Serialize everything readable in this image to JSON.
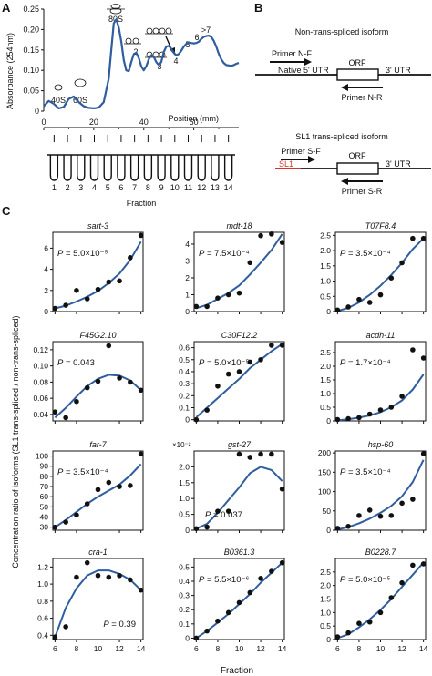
{
  "panel_labels": {
    "A": "A",
    "B": "B",
    "C": "C"
  },
  "colors": {
    "curve": "#2f5d9e",
    "dot": "#111111",
    "sl1": "#d8332a",
    "line": "#111111"
  },
  "panel_b": {
    "non_title": "Non-trans-spliced isoform",
    "sl1_title": "SL1 trans-spliced isoform",
    "primer_nf": "Primer N-F",
    "primer_nr": "Primer N-R",
    "native_utr": "Native 5' UTR",
    "orf": "ORF",
    "utr3": "3' UTR",
    "primer_sf": "Primer S-F",
    "primer_sr": "Primer S-R",
    "sl1": "SL1"
  },
  "panel_c": {
    "y_axis_label": "Concentration ratio of  isoforms (SL1 trans-spliced / non-trans-spliced)",
    "x_axis_label": "Fraction"
  },
  "chart_data": [
    {
      "id": "profile",
      "type": "line",
      "ylabel": "Absorbance (254nm)",
      "xlabel": "Position (mm)",
      "xlim": [
        0,
        78
      ],
      "ylim": [
        0,
        0.25
      ],
      "yticks": [
        "0",
        "0.05",
        "0.10",
        "0.15",
        "0.20",
        "0.25"
      ],
      "ytick_values": [
        0,
        0.05,
        0.1,
        0.15,
        0.2,
        0.25
      ],
      "xticks": [
        "0",
        "20",
        "40",
        "60"
      ],
      "xtick_values": [
        0,
        20,
        40,
        60
      ],
      "x": [
        0,
        2,
        4,
        6,
        8,
        10,
        12,
        14,
        16,
        18,
        20,
        22,
        24,
        26,
        27,
        28,
        29,
        30,
        31,
        32,
        33,
        34,
        35,
        36,
        37,
        38,
        39,
        40,
        41,
        42,
        43,
        44,
        45,
        46,
        47,
        48,
        49,
        50,
        51,
        52,
        53,
        54,
        55,
        56,
        57,
        58,
        59,
        60,
        61,
        62,
        63,
        64,
        65,
        66,
        67,
        68,
        69,
        70,
        71,
        72,
        73,
        74,
        75,
        76,
        77,
        78
      ],
      "y": [
        0.012,
        0.025,
        0.018,
        0.007,
        0.01,
        0.03,
        0.036,
        0.022,
        0.012,
        0.008,
        0.007,
        0.009,
        0.022,
        0.08,
        0.15,
        0.215,
        0.225,
        0.205,
        0.17,
        0.125,
        0.1,
        0.098,
        0.12,
        0.14,
        0.143,
        0.13,
        0.11,
        0.1,
        0.11,
        0.127,
        0.137,
        0.133,
        0.12,
        0.113,
        0.12,
        0.145,
        0.158,
        0.16,
        0.153,
        0.143,
        0.137,
        0.14,
        0.148,
        0.158,
        0.165,
        0.168,
        0.167,
        0.166,
        0.167,
        0.17,
        0.177,
        0.182,
        0.184,
        0.185,
        0.182,
        0.172,
        0.158,
        0.14,
        0.127,
        0.118,
        0.113,
        0.112,
        0.111,
        0.113,
        0.116,
        0.118
      ],
      "annotations": [
        "40S",
        "60S",
        "80S",
        "2",
        "3",
        "4",
        "5",
        "6",
        ">7"
      ],
      "fractions": [
        "1",
        "2",
        "3",
        "4",
        "5",
        "6",
        "7",
        "8",
        "9",
        "10",
        "11",
        "12",
        "13",
        "14"
      ],
      "fraction_label": "Fraction"
    },
    {
      "id": "sart-3",
      "type": "scatter",
      "title": "sart-3",
      "pvalue": "P = 5.0×10⁻⁵",
      "x": [
        6,
        7,
        8,
        9,
        10,
        11,
        12,
        13,
        14
      ],
      "y": [
        0.3,
        0.6,
        2.0,
        1.2,
        2.1,
        2.8,
        2.9,
        5.1,
        7.2
      ],
      "fit": [
        0.3,
        0.55,
        0.95,
        1.4,
        1.95,
        2.7,
        3.6,
        4.9,
        6.6
      ],
      "ylim": [
        0,
        7.5
      ],
      "yticks": [
        0,
        2,
        4,
        6
      ],
      "ytick_labels": [
        "0",
        "2",
        "4",
        "6"
      ],
      "xticks": [],
      "pos": "tl"
    },
    {
      "id": "mdt-18",
      "type": "scatter",
      "title": "mdt-18",
      "pvalue": "P = 7.5×10⁻⁴",
      "x": [
        6,
        7,
        8,
        9,
        10,
        11,
        12,
        13,
        14
      ],
      "y": [
        0.3,
        0.3,
        0.8,
        1.0,
        1.1,
        2.9,
        4.5,
        4.6,
        4.1
      ],
      "fit": [
        0.2,
        0.4,
        0.75,
        1.1,
        1.55,
        2.2,
        2.9,
        3.65,
        4.6
      ],
      "ylim": [
        0,
        4.7
      ],
      "yticks": [
        0,
        1,
        2,
        3,
        4
      ],
      "ytick_labels": [
        "0",
        "1",
        "2",
        "3",
        "4"
      ],
      "xticks": [],
      "pos": "tl"
    },
    {
      "id": "T07F8.4",
      "type": "scatter",
      "title": "T07F8.4",
      "pvalue": "P = 3.5×10⁻⁴",
      "x": [
        6,
        7,
        8,
        9,
        10,
        11,
        12,
        13,
        14
      ],
      "y": [
        0.05,
        0.15,
        0.4,
        0.3,
        0.55,
        1.1,
        1.6,
        2.4,
        2.4
      ],
      "fit": [
        0.02,
        0.12,
        0.3,
        0.55,
        0.85,
        1.2,
        1.6,
        2.05,
        2.4
      ],
      "ylim": [
        0,
        2.6
      ],
      "yticks": [
        0,
        0.5,
        1.0,
        1.5,
        2.0,
        2.5
      ],
      "ytick_labels": [
        "0",
        "0.5",
        "1.0",
        "1.5",
        "2.0",
        "2.5"
      ],
      "xticks": [],
      "pos": "tl"
    },
    {
      "id": "F45G2.10",
      "type": "scatter",
      "title": "F45G2.10",
      "pvalue": "P = 0.043",
      "x": [
        6,
        7,
        8,
        9,
        10,
        11,
        12,
        13,
        14
      ],
      "y": [
        0.043,
        0.036,
        0.056,
        0.073,
        0.081,
        0.125,
        0.085,
        0.08,
        0.07
      ],
      "fit": [
        0.036,
        0.048,
        0.062,
        0.075,
        0.084,
        0.089,
        0.088,
        0.082,
        0.07
      ],
      "ylim": [
        0.032,
        0.13
      ],
      "yticks": [
        0.04,
        0.06,
        0.08,
        0.1,
        0.12
      ],
      "ytick_labels": [
        "0.04",
        "0.06",
        "0.08",
        "0.10",
        "0.12"
      ],
      "xticks": [],
      "pos": "tl"
    },
    {
      "id": "C30F12.2",
      "type": "scatter",
      "title": "C30F12.2",
      "pvalue": "P = 5.0×10⁻⁵",
      "x": [
        6,
        7,
        8,
        9,
        10,
        11,
        12,
        13,
        14
      ],
      "y": [
        0.0,
        0.08,
        0.28,
        0.38,
        0.4,
        0.48,
        0.5,
        0.62,
        0.62
      ],
      "fit": [
        0.02,
        0.1,
        0.18,
        0.26,
        0.34,
        0.43,
        0.5,
        0.57,
        0.63
      ],
      "ylim": [
        -0.01,
        0.65
      ],
      "yticks": [
        0,
        0.1,
        0.2,
        0.3,
        0.4,
        0.5,
        0.6
      ],
      "ytick_labels": [
        "0",
        "0.1",
        "0.2",
        "0.3",
        "0.4",
        "0.5",
        "0.6"
      ],
      "xticks": [],
      "pos": "tl"
    },
    {
      "id": "acdh-11",
      "type": "scatter",
      "title": "acdh-11",
      "pvalue": "P = 1.7×10⁻⁴",
      "x": [
        6,
        7,
        8,
        9,
        10,
        11,
        12,
        13,
        14
      ],
      "y": [
        0.05,
        0.08,
        0.12,
        0.25,
        0.4,
        0.5,
        0.9,
        2.6,
        2.3
      ],
      "fit": [
        0.02,
        0.06,
        0.12,
        0.2,
        0.32,
        0.5,
        0.75,
        1.15,
        1.7
      ],
      "ylim": [
        0,
        2.9
      ],
      "yticks": [
        0,
        0.5,
        1.0,
        1.5,
        2.0,
        2.5
      ],
      "ytick_labels": [
        "0",
        "0.5",
        "1.0",
        "1.5",
        "2.0",
        "2.5"
      ],
      "xticks": [],
      "pos": "tl"
    },
    {
      "id": "far-7",
      "type": "scatter",
      "title": "far-7",
      "pvalue": "P = 3.5×10⁻⁴",
      "x": [
        6,
        7,
        8,
        9,
        10,
        11,
        12,
        13,
        14
      ],
      "y": [
        30,
        35,
        42,
        53,
        67,
        74,
        70,
        71,
        102
      ],
      "fit": [
        30,
        37,
        45,
        53,
        60,
        66,
        72,
        81,
        92
      ],
      "ylim": [
        27,
        105
      ],
      "yticks": [
        30,
        40,
        50,
        60,
        70,
        80,
        90,
        100
      ],
      "ytick_labels": [
        "30",
        "40",
        "50",
        "60",
        "70",
        "80",
        "90",
        "100"
      ],
      "xticks": [],
      "pos": "tl"
    },
    {
      "id": "gst-27",
      "type": "scatter",
      "title": "gst-27",
      "pvalue": "P = 0.037",
      "x": [
        6,
        7,
        8,
        9,
        10,
        11,
        12,
        13,
        14
      ],
      "y": [
        0.05,
        0.1,
        0.6,
        0.6,
        2.4,
        2.3,
        2.4,
        2.4,
        1.3
      ],
      "fit": [
        0.05,
        0.2,
        0.55,
        0.95,
        1.35,
        1.8,
        2.0,
        1.9,
        1.55
      ],
      "ylim": [
        0,
        2.5
      ],
      "yticks": [
        0,
        0.5,
        1.0,
        1.5,
        2.0
      ],
      "ytick_labels": [
        "0",
        "0.5",
        "1.0",
        "1.5",
        "2.0"
      ],
      "xticks": [],
      "multiplier": "×10⁻²",
      "pos": "bc"
    },
    {
      "id": "hsp-60",
      "type": "scatter",
      "title": "hsp-60",
      "pvalue": "P = 3.5×10⁻⁴",
      "x": [
        6,
        7,
        8,
        9,
        10,
        11,
        12,
        13,
        14
      ],
      "y": [
        5,
        10,
        38,
        52,
        36,
        38,
        70,
        80,
        198
      ],
      "fit": [
        2,
        8,
        18,
        30,
        45,
        63,
        88,
        125,
        182
      ],
      "ylim": [
        0,
        205
      ],
      "yticks": [
        0,
        50,
        100,
        150,
        200
      ],
      "ytick_labels": [
        "0",
        "50",
        "100",
        "150",
        "200"
      ],
      "xticks": [],
      "pos": "tl"
    },
    {
      "id": "cra-1",
      "type": "scatter",
      "title": "cra-1",
      "pvalue": "P = 0.39",
      "x": [
        6,
        7,
        8,
        9,
        10,
        11,
        12,
        13,
        14
      ],
      "y": [
        0.38,
        0.5,
        1.08,
        1.25,
        1.1,
        1.08,
        1.1,
        1.05,
        0.93
      ],
      "fit": [
        0.38,
        0.72,
        0.95,
        1.1,
        1.16,
        1.16,
        1.12,
        1.05,
        0.93
      ],
      "ylim": [
        0.35,
        1.3
      ],
      "yticks": [
        0.4,
        0.6,
        0.8,
        1.0,
        1.2
      ],
      "ytick_labels": [
        "0.4",
        "0.6",
        "0.8",
        "1.0",
        "1.2"
      ],
      "xticks": [
        6,
        8,
        10,
        12,
        14
      ],
      "pos": "br"
    },
    {
      "id": "B0361.3",
      "type": "scatter",
      "title": "B0361.3",
      "pvalue": "P = 5.5×10⁻⁶",
      "x": [
        6,
        7,
        8,
        9,
        10,
        11,
        12,
        13,
        14
      ],
      "y": [
        0.0,
        0.05,
        0.12,
        0.18,
        0.25,
        0.32,
        0.42,
        0.47,
        0.53
      ],
      "fit": [
        0.0,
        0.05,
        0.11,
        0.17,
        0.24,
        0.31,
        0.39,
        0.46,
        0.53
      ],
      "ylim": [
        -0.01,
        0.56
      ],
      "yticks": [
        0,
        0.1,
        0.2,
        0.3,
        0.4,
        0.5
      ],
      "ytick_labels": [
        "0",
        "0.1",
        "0.2",
        "0.3",
        "0.4",
        "0.5"
      ],
      "xticks": [
        6,
        8,
        10,
        12,
        14
      ],
      "pos": "tl"
    },
    {
      "id": "B0228.7",
      "type": "scatter",
      "title": "B0228.7",
      "pvalue": "P = 5.0×10⁻⁵",
      "x": [
        6,
        7,
        8,
        9,
        10,
        11,
        12,
        13,
        14
      ],
      "y": [
        0.1,
        0.25,
        0.6,
        0.65,
        1.0,
        1.55,
        2.1,
        2.75,
        2.8
      ],
      "fit": [
        0.05,
        0.2,
        0.45,
        0.75,
        1.1,
        1.5,
        1.95,
        2.4,
        2.85
      ],
      "ylim": [
        0,
        3.0
      ],
      "yticks": [
        0,
        0.5,
        1.0,
        1.5,
        2.0,
        2.5
      ],
      "ytick_labels": [
        "0",
        "0.5",
        "1.0",
        "1.5",
        "2.0",
        "2.5"
      ],
      "xticks": [
        6,
        8,
        10,
        12,
        14
      ],
      "pos": "tl"
    }
  ]
}
